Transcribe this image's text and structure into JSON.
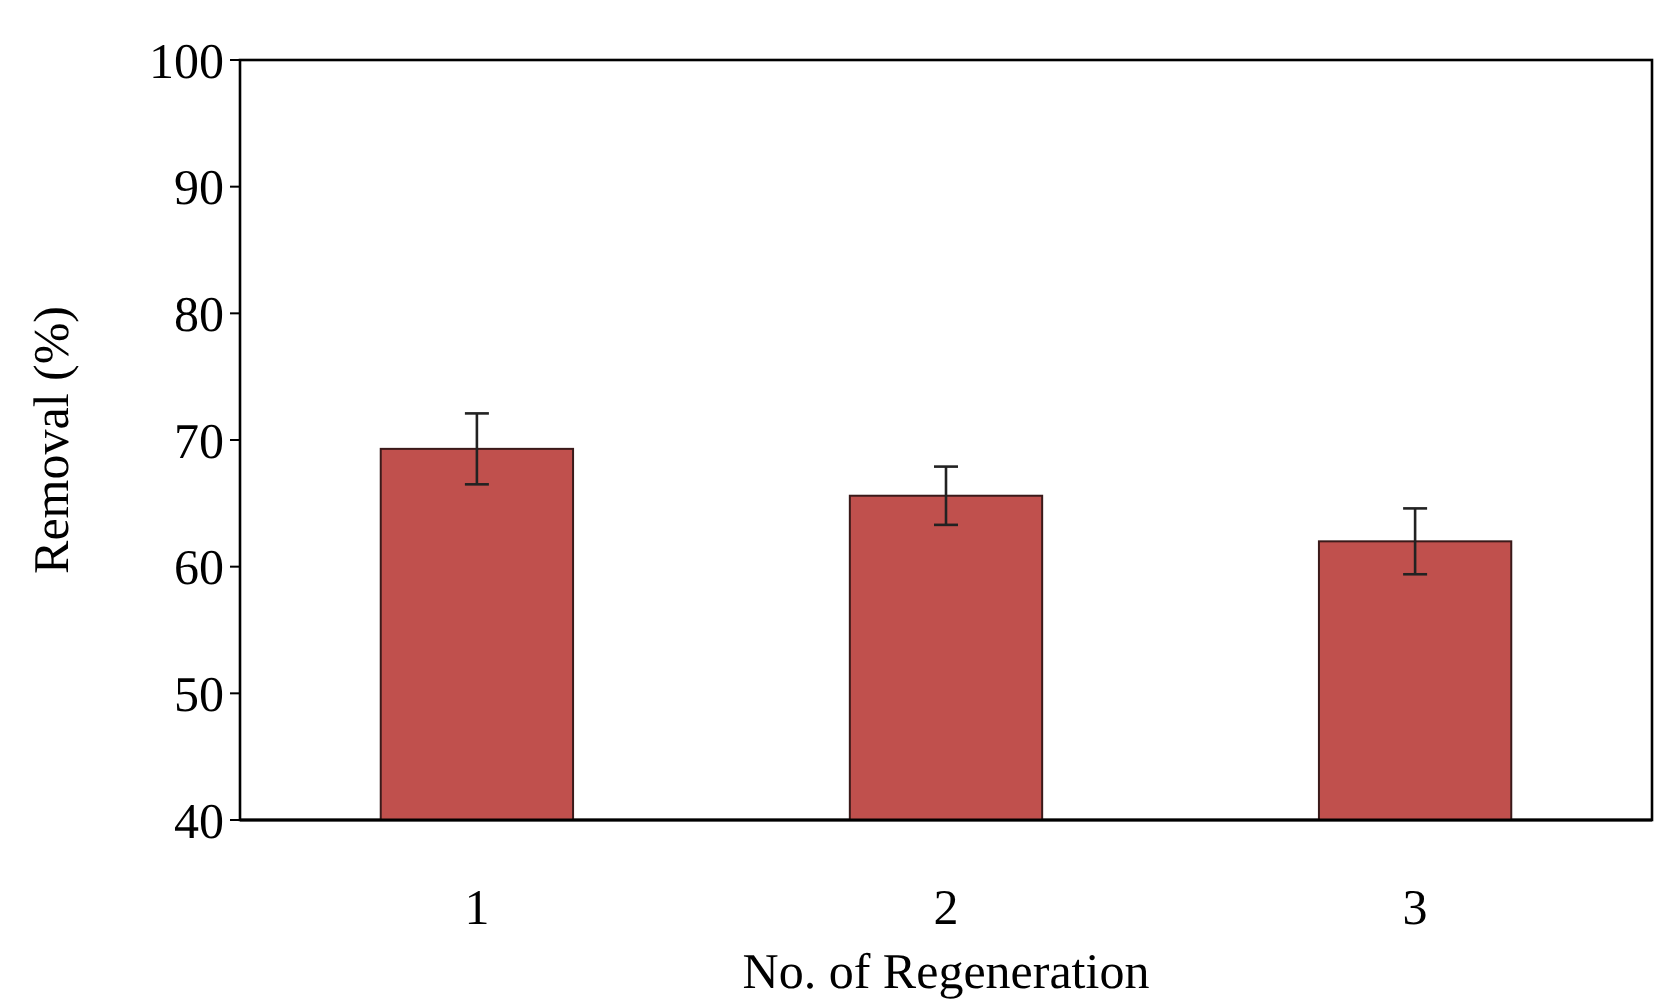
{
  "chart_data": {
    "type": "bar",
    "xlabel": "No. of Regeneration",
    "ylabel": "Removal (%)",
    "categories": [
      "1",
      "2",
      "3"
    ],
    "values": [
      69.3,
      65.6,
      62.0
    ],
    "errors": [
      2.8,
      2.3,
      2.6
    ],
    "color": "#c0504d",
    "ylim": [
      40,
      100
    ],
    "yticks": [
      40,
      50,
      60,
      70,
      80,
      90,
      100
    ],
    "grid": false
  }
}
